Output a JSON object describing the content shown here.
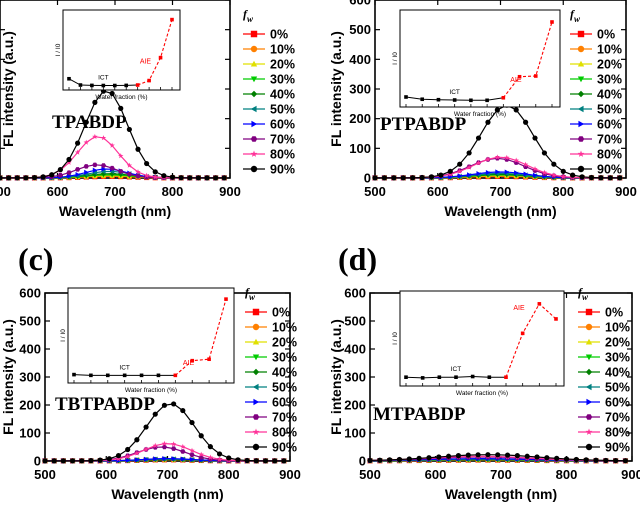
{
  "figure": {
    "legend_header_main": "f",
    "legend_header_sub": "w",
    "legend_labels": [
      "0%",
      "10%",
      "20%",
      "30%",
      "40%",
      "50%",
      "60%",
      "70%",
      "80%",
      "90%"
    ],
    "legend_colors": [
      "#ff0000",
      "#ff8000",
      "#e0e000",
      "#00cc00",
      "#008000",
      "#008080",
      "#0000ff",
      "#800080",
      "#ff3399",
      "#000000"
    ],
    "legend_markers": [
      "square",
      "circle",
      "triangle-up",
      "triangle-down",
      "diamond",
      "triangle-left",
      "triangle-right",
      "hexagon",
      "star",
      "circle"
    ]
  },
  "chart_data": [
    {
      "type": "line",
      "panel_letter": "",
      "compound": "TPABDP",
      "xlabel": "Wavelength (nm)",
      "ylabel": "FL intensity (a.u.)",
      "xlim": [
        500,
        900
      ],
      "ylim": [
        0,
        600
      ],
      "xticks": [
        500,
        600,
        700,
        800,
        900
      ],
      "yticks": [
        0,
        100,
        200,
        300,
        400,
        500,
        600
      ],
      "series": [
        {
          "name": "90%",
          "peak": 295,
          "center": 685,
          "width": 52
        },
        {
          "name": "80%",
          "peak": 140,
          "center": 670,
          "width": 50
        },
        {
          "name": "70%",
          "peak": 44,
          "center": 668,
          "width": 50
        },
        {
          "name": "60%",
          "peak": 30,
          "center": 685,
          "width": 50
        },
        {
          "name": "50%",
          "peak": 22,
          "center": 690,
          "width": 52
        },
        {
          "name": "40%",
          "peak": 14,
          "center": 690,
          "width": 55
        },
        {
          "name": "30%",
          "peak": 10,
          "center": 690,
          "width": 55
        },
        {
          "name": "20%",
          "peak": 8,
          "center": 690,
          "width": 55
        },
        {
          "name": "10%",
          "peak": 6,
          "center": 690,
          "width": 55
        },
        {
          "name": "0%",
          "peak": 5,
          "center": 690,
          "width": 55
        }
      ],
      "inset": {
        "xlabel": "Water fraction (%)",
        "ylabel": "I / I0",
        "icx_label": "ICT",
        "aie_label": "AIE",
        "x": [
          0,
          10,
          20,
          30,
          40,
          50,
          60,
          70,
          80,
          90
        ],
        "y": [
          60,
          8,
          5,
          4,
          4,
          5,
          8,
          45,
          235,
          550
        ],
        "ymax": 580
      }
    },
    {
      "type": "line",
      "panel_letter": "",
      "compound": "PTPABDP",
      "xlabel": "Wavelength (nm)",
      "ylabel": "FL intensity (a.u.)",
      "xlim": [
        500,
        900
      ],
      "ylim": [
        0,
        600
      ],
      "xticks": [
        500,
        600,
        700,
        800,
        900
      ],
      "yticks": [
        0,
        100,
        200,
        300,
        400,
        500,
        600
      ],
      "series": [
        {
          "name": "90%",
          "peak": 245,
          "center": 710,
          "width": 58
        },
        {
          "name": "80%",
          "peak": 70,
          "center": 700,
          "width": 60
        },
        {
          "name": "70%",
          "peak": 66,
          "center": 695,
          "width": 60
        },
        {
          "name": "60%",
          "peak": 20,
          "center": 700,
          "width": 60
        },
        {
          "name": "50%",
          "peak": 15,
          "center": 700,
          "width": 60
        },
        {
          "name": "40%",
          "peak": 12,
          "center": 700,
          "width": 60
        },
        {
          "name": "30%",
          "peak": 10,
          "center": 700,
          "width": 60
        },
        {
          "name": "20%",
          "peak": 8,
          "center": 700,
          "width": 60
        },
        {
          "name": "10%",
          "peak": 6,
          "center": 700,
          "width": 60
        },
        {
          "name": "0%",
          "peak": 5,
          "center": 700,
          "width": 60
        }
      ],
      "inset": {
        "xlabel": "Water fraction (%)",
        "ylabel": "I / I0",
        "icx_label": "ICT",
        "aie_label": "AIE",
        "x": [
          0,
          10,
          20,
          30,
          40,
          50,
          60,
          70,
          80,
          90
        ],
        "y": [
          40,
          25,
          22,
          20,
          18,
          18,
          35,
          175,
          180,
          540
        ],
        "ymax": 580
      }
    },
    {
      "type": "line",
      "panel_letter": "(c)",
      "compound": "TBTPABDP",
      "xlabel": "Wavelength (nm)",
      "ylabel": "FL intensity (a.u.)",
      "xlim": [
        500,
        900
      ],
      "ylim": [
        0,
        600
      ],
      "xticks": [
        500,
        600,
        700,
        800,
        900
      ],
      "yticks": [
        0,
        100,
        200,
        300,
        400,
        500,
        600
      ],
      "series": [
        {
          "name": "90%",
          "peak": 205,
          "center": 705,
          "width": 55
        },
        {
          "name": "80%",
          "peak": 62,
          "center": 700,
          "width": 55
        },
        {
          "name": "70%",
          "peak": 50,
          "center": 690,
          "width": 55
        },
        {
          "name": "60%",
          "peak": 8,
          "center": 700,
          "width": 55
        },
        {
          "name": "50%",
          "peak": 7,
          "center": 700,
          "width": 55
        },
        {
          "name": "40%",
          "peak": 6,
          "center": 700,
          "width": 55
        },
        {
          "name": "30%",
          "peak": 5,
          "center": 700,
          "width": 55
        },
        {
          "name": "20%",
          "peak": 5,
          "center": 700,
          "width": 55
        },
        {
          "name": "10%",
          "peak": 4,
          "center": 700,
          "width": 55
        },
        {
          "name": "0%",
          "peak": 4,
          "center": 700,
          "width": 55
        }
      ],
      "inset": {
        "xlabel": "Water fraction (%)",
        "ylabel": "I / I0",
        "icx_label": "ICT",
        "aie_label": "AIE",
        "x": [
          0,
          10,
          20,
          30,
          40,
          50,
          60,
          70,
          80,
          90
        ],
        "y": [
          30,
          25,
          25,
          25,
          25,
          25,
          25,
          125,
          135,
          545
        ],
        "ymax": 580
      }
    },
    {
      "type": "line",
      "panel_letter": "(d)",
      "compound": "MTPABDP",
      "xlabel": "Wavelength (nm)",
      "ylabel": "FL intensity (a.u.)",
      "xlim": [
        500,
        900
      ],
      "ylim": [
        0,
        600
      ],
      "xticks": [
        500,
        600,
        700,
        800,
        900
      ],
      "yticks": [
        0,
        100,
        200,
        300,
        400,
        500,
        600
      ],
      "series": [
        {
          "name": "90%",
          "peak": 22,
          "center": 680,
          "width": 110
        },
        {
          "name": "80%",
          "peak": 16,
          "center": 670,
          "width": 110
        },
        {
          "name": "70%",
          "peak": 14,
          "center": 670,
          "width": 110
        },
        {
          "name": "60%",
          "peak": 8,
          "center": 670,
          "width": 110
        },
        {
          "name": "50%",
          "peak": 6,
          "center": 670,
          "width": 110
        },
        {
          "name": "40%",
          "peak": 5,
          "center": 670,
          "width": 110
        },
        {
          "name": "30%",
          "peak": 4,
          "center": 670,
          "width": 110
        },
        {
          "name": "20%",
          "peak": 4,
          "center": 670,
          "width": 110
        },
        {
          "name": "10%",
          "peak": 3,
          "center": 670,
          "width": 110
        },
        {
          "name": "0%",
          "peak": 3,
          "center": 670,
          "width": 110
        }
      ],
      "inset": {
        "xlabel": "Water fraction (%)",
        "ylabel": "I / I0",
        "icx_label": "ICT",
        "aie_label": "AIE",
        "x": [
          0,
          10,
          20,
          30,
          40,
          50,
          60,
          70,
          80,
          90
        ],
        "y": [
          35,
          30,
          35,
          35,
          40,
          35,
          35,
          355,
          570,
          460
        ],
        "ymax": 620
      }
    }
  ]
}
